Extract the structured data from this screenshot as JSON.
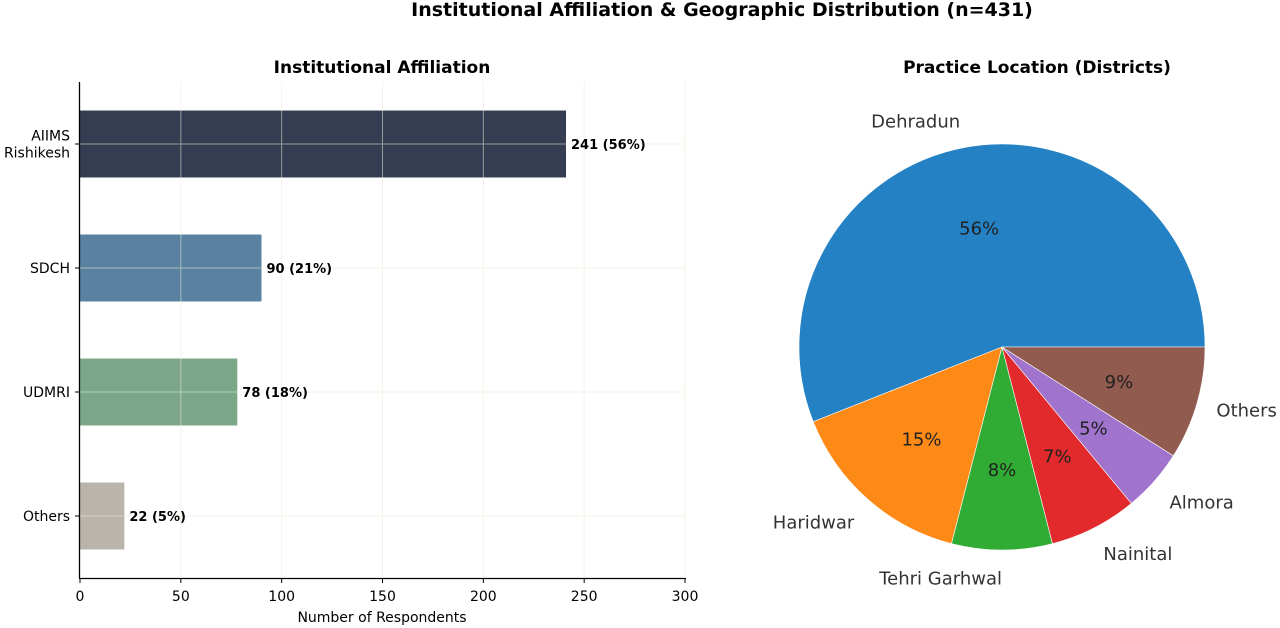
{
  "figure": {
    "suptitle": "Institutional Affiliation & Geographic Distribution (n=431)"
  },
  "chart_data": [
    {
      "type": "bar",
      "orientation": "horizontal",
      "title": "Institutional Affiliation",
      "xlabel": "Number of Respondents",
      "ylabel": "",
      "categories": [
        "AIIMS\nRishikesh",
        "SDCH",
        "UDMRI",
        "Others"
      ],
      "values": [
        241,
        90,
        78,
        22
      ],
      "data_labels": [
        "241 (56%)",
        "90 (21%)",
        "78 (18%)",
        "22 (5%)"
      ],
      "colors": [
        "#31394f",
        "#567e9e",
        "#78a586",
        "#b9b4a8"
      ],
      "xlim": [
        0,
        300
      ],
      "xticks": [
        0,
        50,
        100,
        150,
        200,
        250,
        300
      ],
      "grid": true
    },
    {
      "type": "pie",
      "title": "Practice Location (Districts)",
      "labels": [
        "Dehradun",
        "Haridwar",
        "Tehri Garhwal",
        "Nainital",
        "Almora",
        "Others"
      ],
      "percent_labels": [
        "56%",
        "15%",
        "8%",
        "7%",
        "5%",
        "9%"
      ],
      "values": [
        56,
        15,
        8,
        7,
        5,
        9
      ],
      "colors": [
        "#2481c3",
        "#fd8a16",
        "#30ac34",
        "#e2292c",
        "#a074cc",
        "#925b4f"
      ],
      "start_angle": 0,
      "direction": "counterclockwise"
    }
  ]
}
